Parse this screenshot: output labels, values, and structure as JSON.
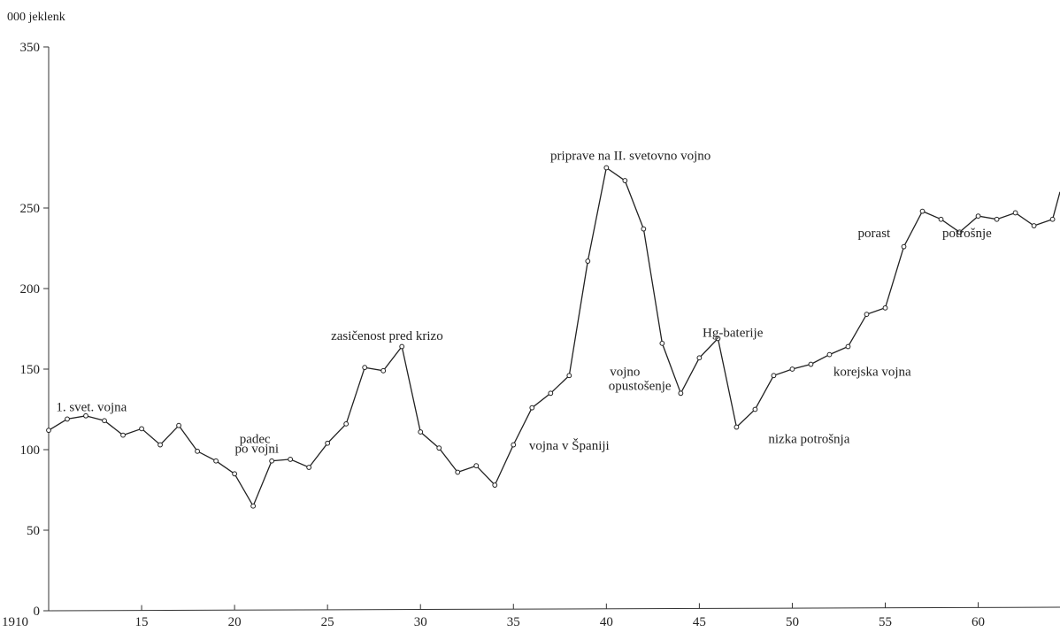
{
  "chart_data": {
    "type": "line",
    "title": "",
    "ylabel": "000 jeklenk",
    "xlabel": "",
    "ylim": [
      0,
      350
    ],
    "xlim": [
      1910,
      1964.4
    ],
    "grid": false,
    "x_ticks": [
      1910,
      1915,
      1920,
      1925,
      1930,
      1935,
      1940,
      1945,
      1950,
      1955,
      1960
    ],
    "x_tick_labels": [
      "1910",
      "15",
      "20",
      "25",
      "30",
      "35",
      "40",
      "45",
      "50",
      "55",
      "60"
    ],
    "y_ticks": [
      0,
      50,
      100,
      150,
      200,
      250,
      350
    ],
    "y_tick_labels": [
      "0",
      "50",
      "100",
      "150",
      "200",
      "250",
      "350"
    ],
    "series": [
      {
        "x": [
          1910,
          1911,
          1912,
          1913,
          1914,
          1915,
          1916,
          1917,
          1918,
          1919,
          1920,
          1921,
          1922,
          1923,
          1924,
          1925,
          1926,
          1927,
          1928,
          1929,
          1930,
          1931,
          1932,
          1933,
          1934,
          1935,
          1936,
          1937,
          1938,
          1939,
          1940,
          1941,
          1942,
          1943,
          1944,
          1945,
          1946,
          1947,
          1948,
          1949,
          1950,
          1951,
          1952,
          1953,
          1954,
          1955,
          1956,
          1957,
          1958,
          1959,
          1960,
          1961,
          1962,
          1963,
          1964,
          1964.4
        ],
        "values": [
          112,
          119,
          121,
          118,
          109,
          113,
          103,
          115,
          99,
          93,
          85,
          65,
          93,
          94,
          89,
          104,
          116,
          151,
          149,
          164,
          111,
          101,
          86,
          90,
          78,
          103,
          126,
          135,
          146,
          217,
          275,
          267,
          237,
          166,
          135,
          157,
          169,
          114,
          125,
          146,
          150,
          153,
          159,
          164,
          184,
          188,
          226,
          248,
          243,
          235,
          245,
          243,
          247,
          239,
          243,
          260
        ]
      }
    ],
    "annotations": [
      {
        "text": "1. svet. vojna",
        "x": 1912.3,
        "y": 124
      },
      {
        "text": "padec",
        "x": 1921.1,
        "y": 104
      },
      {
        "text": "po vojni",
        "x": 1921.2,
        "y": 98
      },
      {
        "text": "zasičenost pred krizo",
        "x": 1928.2,
        "y": 168
      },
      {
        "text": "priprave na II. svetovno vojno",
        "x": 1941.3,
        "y": 280
      },
      {
        "text": "vojno",
        "x": 1941.0,
        "y": 146
      },
      {
        "text": "opustošenje",
        "x": 1941.8,
        "y": 137
      },
      {
        "text": "vojna v Španiji",
        "x": 1938.0,
        "y": 100
      },
      {
        "text": "Hg-baterije",
        "x": 1946.8,
        "y": 170
      },
      {
        "text": "nizka potrošnja",
        "x": 1950.9,
        "y": 104
      },
      {
        "text": "korejska vojna",
        "x": 1954.3,
        "y": 146
      },
      {
        "text": "porast",
        "x": 1954.4,
        "y": 232
      },
      {
        "text": "potrošnje",
        "x": 1959.4,
        "y": 232
      }
    ]
  }
}
